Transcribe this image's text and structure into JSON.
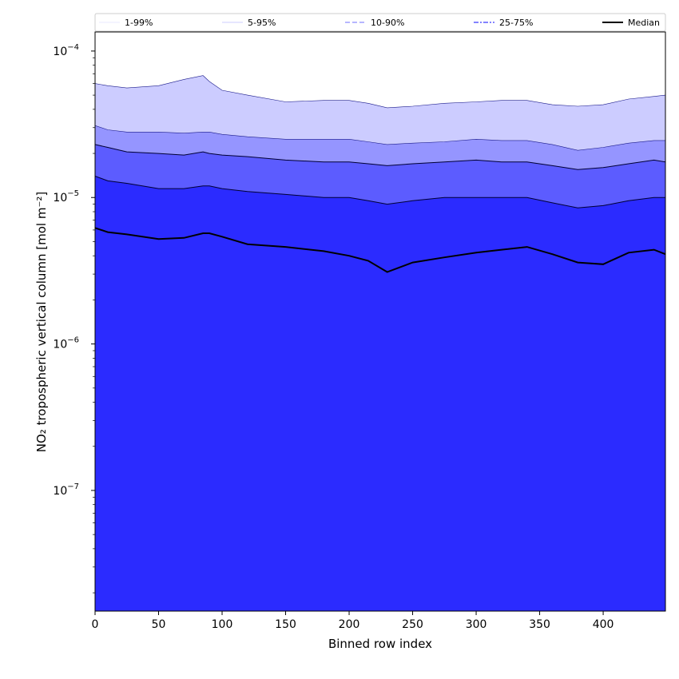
{
  "chart_data": {
    "type": "area",
    "xlabel": "Binned row index",
    "ylabel": "NO₂ tropospheric vertical column [mol m⁻²]",
    "xlim": [
      0,
      449
    ],
    "ylim": [
      1.5e-08,
      0.000135
    ],
    "yscale": "log",
    "grid": false,
    "legend_position": "top",
    "x_ticks": [
      0,
      50,
      100,
      150,
      200,
      250,
      300,
      350,
      400
    ],
    "x_tick_labels": [
      "0",
      "50",
      "100",
      "150",
      "200",
      "250",
      "300",
      "350",
      "400"
    ],
    "y_ticks": [
      1e-07,
      1e-06,
      1e-05,
      0.0001
    ],
    "y_tick_labels": [
      {
        "base": "10",
        "exp": "−7"
      },
      {
        "base": "10",
        "exp": "−6"
      },
      {
        "base": "10",
        "exp": "−5"
      },
      {
        "base": "10",
        "exp": "−4"
      }
    ],
    "x": [
      0,
      10,
      25,
      50,
      70,
      85,
      90,
      100,
      120,
      150,
      180,
      200,
      215,
      230,
      250,
      275,
      300,
      320,
      340,
      360,
      380,
      400,
      420,
      440,
      449
    ],
    "bands": [
      {
        "name": "1-99%",
        "fill": "#2b2bff",
        "lower": [
          1.5e-08,
          1.5e-08,
          1.5e-08,
          1.5e-08,
          1.5e-08,
          1.5e-08,
          1.5e-08,
          1.5e-08,
          1.5e-08,
          1.5e-08,
          1.5e-08,
          1.5e-08,
          1.5e-08,
          1.5e-08,
          1.5e-08,
          1.5e-08,
          1.5e-08,
          1.5e-08,
          1.5e-08,
          1.5e-08,
          1.5e-08,
          1.5e-08,
          1.5e-08,
          1.5e-08,
          1.5e-08
        ],
        "upper": [
          6e-05,
          5.8e-05,
          5.6e-05,
          5.8e-05,
          6.4e-05,
          6.8e-05,
          6.2e-05,
          5.4e-05,
          5e-05,
          4.5e-05,
          4.6e-05,
          4.6e-05,
          4.4e-05,
          4.1e-05,
          4.2e-05,
          4.4e-05,
          4.5e-05,
          4.6e-05,
          4.6e-05,
          4.3e-05,
          4.2e-05,
          4.3e-05,
          4.7e-05,
          4.9e-05,
          5e-05
        ]
      },
      {
        "name": "5-95%",
        "fill": "#2b2bff",
        "lower": [
          1.5e-08,
          1.5e-08,
          1.5e-08,
          1.5e-08,
          1.5e-08,
          1.5e-08,
          1.5e-08,
          1.5e-08,
          1.5e-08,
          1.5e-08,
          1.5e-08,
          1.5e-08,
          1.5e-08,
          1.5e-08,
          1.5e-08,
          1.5e-08,
          1.5e-08,
          1.5e-08,
          1.5e-08,
          1.5e-08,
          1.5e-08,
          1.5e-08,
          1.5e-08,
          1.5e-08,
          1.5e-08
        ],
        "upper": [
          3.1e-05,
          2.9e-05,
          2.8e-05,
          2.8e-05,
          2.75e-05,
          2.8e-05,
          2.8e-05,
          2.7e-05,
          2.6e-05,
          2.5e-05,
          2.5e-05,
          2.5e-05,
          2.4e-05,
          2.3e-05,
          2.35e-05,
          2.4e-05,
          2.5e-05,
          2.45e-05,
          2.45e-05,
          2.3e-05,
          2.1e-05,
          2.2e-05,
          2.35e-05,
          2.45e-05,
          2.45e-05
        ]
      },
      {
        "name": "10-90%",
        "fill": "#2b2bff",
        "lower": [
          1.5e-08,
          1.5e-08,
          1.5e-08,
          1.5e-08,
          1.5e-08,
          1.5e-08,
          1.5e-08,
          1.5e-08,
          1.5e-08,
          1.5e-08,
          1.5e-08,
          1.5e-08,
          1.5e-08,
          1.5e-08,
          1.5e-08,
          1.5e-08,
          1.5e-08,
          1.5e-08,
          1.5e-08,
          1.5e-08,
          1.5e-08,
          1.5e-08,
          1.5e-08,
          1.5e-08,
          1.5e-08
        ],
        "upper": [
          2.3e-05,
          2.2e-05,
          2.05e-05,
          2e-05,
          1.95e-05,
          2.05e-05,
          2e-05,
          1.95e-05,
          1.9e-05,
          1.8e-05,
          1.75e-05,
          1.75e-05,
          1.7e-05,
          1.65e-05,
          1.7e-05,
          1.75e-05,
          1.8e-05,
          1.75e-05,
          1.75e-05,
          1.65e-05,
          1.55e-05,
          1.6e-05,
          1.7e-05,
          1.8e-05,
          1.75e-05
        ]
      },
      {
        "name": "25-75%",
        "fill": "#2b2bff",
        "lower": [
          1.5e-08,
          1.5e-08,
          1.5e-08,
          1.5e-08,
          1.5e-08,
          1.5e-08,
          1.5e-08,
          1.5e-08,
          1.5e-08,
          1.5e-08,
          1.5e-08,
          1.5e-08,
          1.5e-08,
          1.5e-08,
          1.5e-08,
          1.5e-08,
          1.5e-08,
          1.5e-08,
          1.5e-08,
          1.5e-08,
          1.5e-08,
          1.5e-08,
          1.5e-08,
          1.5e-08,
          1.5e-08
        ],
        "upper": [
          1.4e-05,
          1.3e-05,
          1.25e-05,
          1.15e-05,
          1.15e-05,
          1.2e-05,
          1.2e-05,
          1.15e-05,
          1.1e-05,
          1.05e-05,
          1e-05,
          1e-05,
          9.5e-06,
          9e-06,
          9.5e-06,
          1e-05,
          1e-05,
          1e-05,
          1e-05,
          9.2e-06,
          8.5e-06,
          8.8e-06,
          9.5e-06,
          1e-05,
          1e-05
        ]
      }
    ],
    "band_colors": [
      "#ccccff",
      "#9595ff",
      "#5c5cff",
      "#2b2bff"
    ],
    "median": {
      "name": "Median",
      "color": "#000000",
      "values": [
        6.2e-06,
        5.8e-06,
        5.6e-06,
        5.2e-06,
        5.3e-06,
        5.7e-06,
        5.7e-06,
        5.4e-06,
        4.8e-06,
        4.6e-06,
        4.3e-06,
        4e-06,
        3.7e-06,
        3.1e-06,
        3.6e-06,
        3.9e-06,
        4.2e-06,
        4.4e-06,
        4.6e-06,
        4.1e-06,
        3.6e-06,
        3.5e-06,
        4.2e-06,
        4.4e-06,
        4.1e-06
      ]
    },
    "legend": [
      {
        "name": "1-99%",
        "color": "#d6d6ff",
        "dash": "solid",
        "width": 0.6
      },
      {
        "name": "5-95%",
        "color": "#9a9aff",
        "dash": "solid",
        "width": 0.6
      },
      {
        "name": "10-90%",
        "color": "#8a8aff",
        "dash": "dashed",
        "width": 1.2
      },
      {
        "name": "25-75%",
        "color": "#5a5aff",
        "dash": "dashdot",
        "width": 1.4
      },
      {
        "name": "Median",
        "color": "#000000",
        "dash": "solid",
        "width": 2.0
      }
    ]
  }
}
